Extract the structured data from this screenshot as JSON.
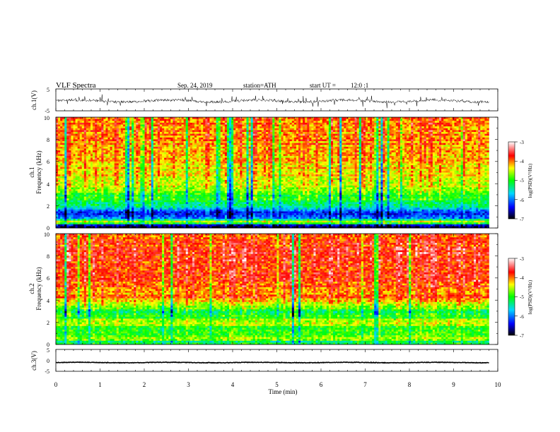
{
  "header": {
    "title": "VLF Spectra",
    "date": "Sep. 24, 2019",
    "station": "station=ATH",
    "start_label": "start UT =",
    "start_time": "12:0 :1"
  },
  "chart_data": [
    {
      "type": "line",
      "name": "ch1-waveform",
      "ylabel": "ch.1(V)",
      "xlim": [
        0,
        10
      ],
      "ylim": [
        -5,
        5
      ],
      "yticks": [
        "5",
        "-5"
      ],
      "data_end_min": 9.8,
      "trace": "noisy waveform centred near -0.5 V with spikes up to about ±2.5 V",
      "color": "#000000"
    },
    {
      "type": "heatmap",
      "name": "ch1-spectrogram",
      "ylabel": "Frequency (kHz)",
      "channel_label": "ch.1",
      "xlim": [
        0,
        10
      ],
      "ylim": [
        0,
        10
      ],
      "yticks": [
        "0",
        "2",
        "4",
        "6",
        "8",
        "10"
      ],
      "data_end_min": 9.8,
      "frequency_profile_kHz_vs_logPSD": [
        [
          0.2,
          -6.8
        ],
        [
          0.5,
          -4.2
        ],
        [
          0.8,
          -5.5
        ],
        [
          1.0,
          -6.1
        ],
        [
          1.4,
          -6.3
        ],
        [
          1.8,
          -5.6
        ],
        [
          2.4,
          -5.2
        ],
        [
          3.0,
          -5.0
        ],
        [
          3.6,
          -4.7
        ],
        [
          4.5,
          -4.4
        ],
        [
          6.0,
          -4.2
        ],
        [
          8.0,
          -4.1
        ],
        [
          10.0,
          -4.1
        ]
      ],
      "colorbar": {
        "label": "log(PSD)(V²/Hz)",
        "ticks": [
          "-3",
          "-4",
          "-5",
          "-6",
          "-7"
        ],
        "range": [
          -7,
          -3
        ]
      }
    },
    {
      "type": "heatmap",
      "name": "ch2-spectrogram",
      "ylabel": "Frequency (kHz)",
      "channel_label": "ch.2",
      "xlim": [
        0,
        10
      ],
      "ylim": [
        0,
        10
      ],
      "yticks": [
        "0",
        "2",
        "4",
        "6",
        "8",
        "10"
      ],
      "data_end_min": 9.8,
      "frequency_profile_kHz_vs_logPSD": [
        [
          0.2,
          -5.3
        ],
        [
          0.6,
          -4.6
        ],
        [
          1.0,
          -5.0
        ],
        [
          1.5,
          -5.0
        ],
        [
          2.0,
          -4.5
        ],
        [
          2.5,
          -5.1
        ],
        [
          3.0,
          -5.2
        ],
        [
          3.5,
          -4.6
        ],
        [
          4.2,
          -4.1
        ],
        [
          6.0,
          -3.8
        ],
        [
          8.0,
          -3.8
        ],
        [
          10.0,
          -3.9
        ]
      ],
      "colorbar": {
        "label": "log(PSD)(V²/Hz)",
        "ticks": [
          "-3",
          "-4",
          "-5",
          "-6",
          "-7"
        ],
        "range": [
          -7,
          -3
        ]
      }
    },
    {
      "type": "line",
      "name": "ch3-waveform",
      "ylabel": "ch.3(V)",
      "xlim": [
        0,
        10
      ],
      "ylim": [
        -5,
        5
      ],
      "yticks": [
        "5",
        "0",
        "-5"
      ],
      "data_end_min": 9.8,
      "trace": "flat band near -1 V",
      "color": "#000000",
      "xlabel": "Time (min)",
      "xticks": [
        "0",
        "1",
        "2",
        "3",
        "4",
        "5",
        "6",
        "7",
        "8",
        "9",
        "10"
      ]
    }
  ],
  "colormap": [
    "#000000",
    "#0000ff",
    "#00d8ff",
    "#00ff00",
    "#ffff00",
    "#ff0000",
    "#ffffff"
  ]
}
